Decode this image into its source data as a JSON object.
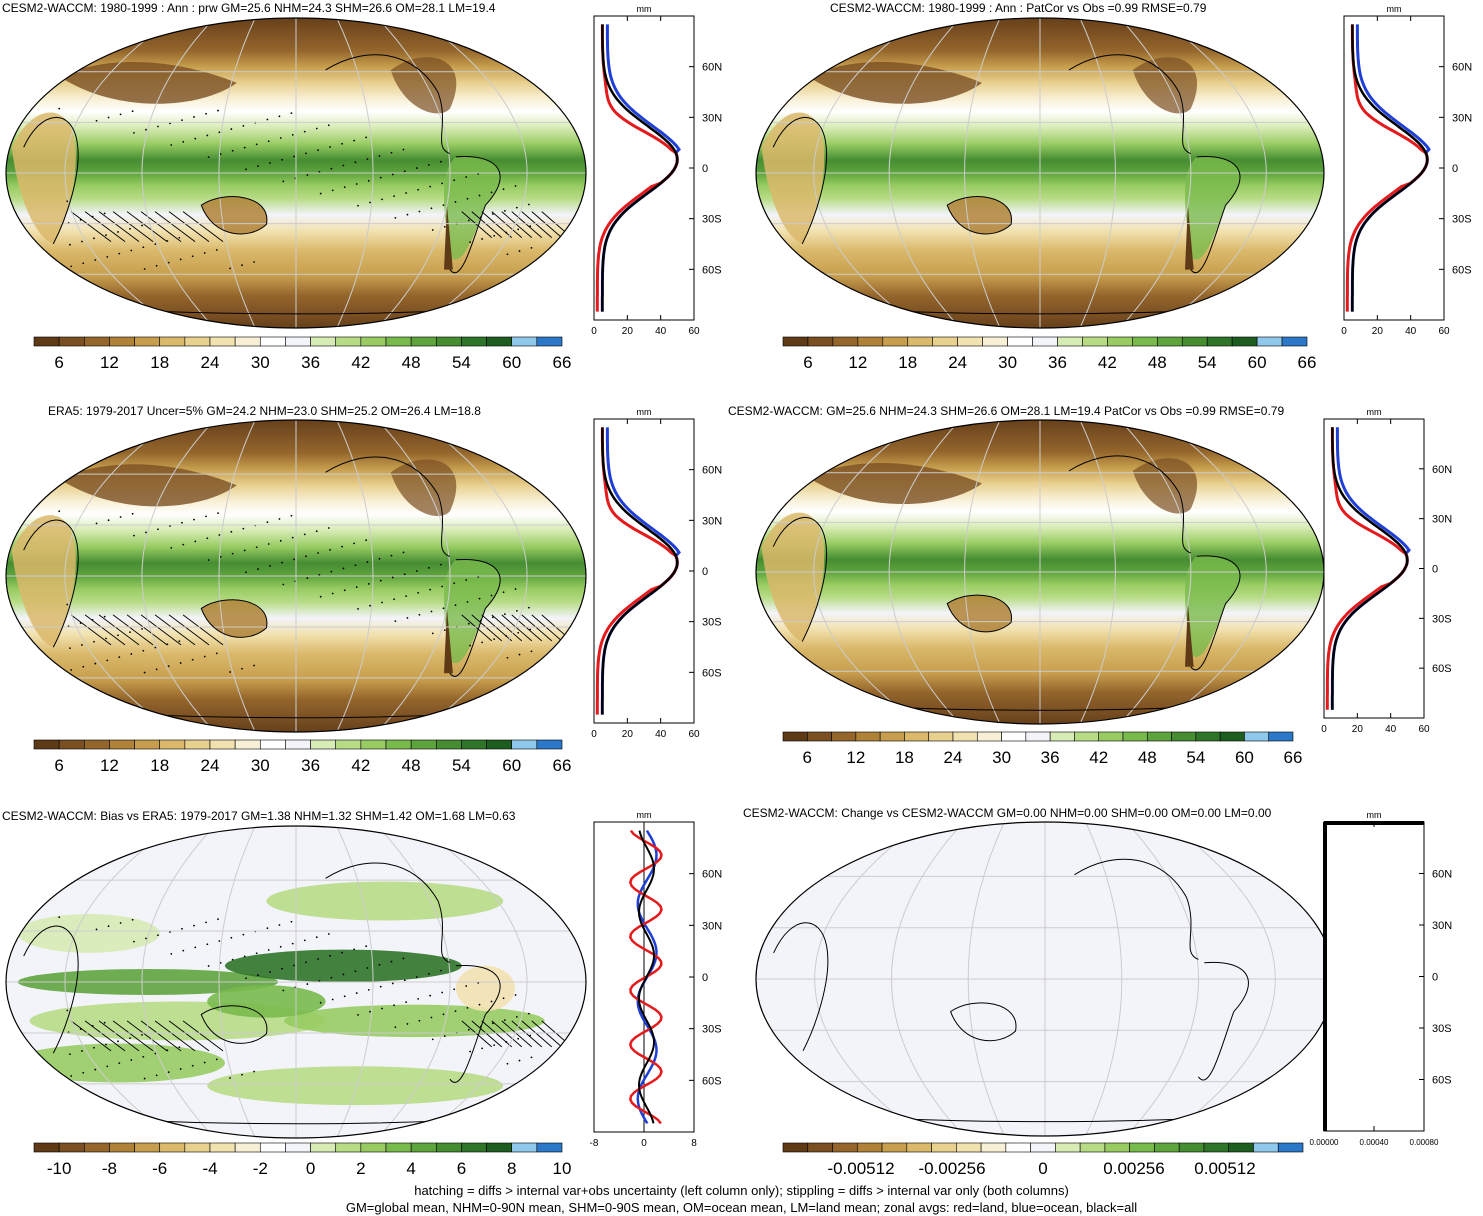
{
  "panels": [
    {
      "id": "p1",
      "title": "CESM2-WACCM: 1980-1999 : Ann : prw GM=25.6 NHM=24.3 SHM=26.6 OM=28.1 LM=19.4",
      "colorbar_labels": [
        "6",
        "12",
        "18",
        "24",
        "30",
        "36",
        "42",
        "48",
        "54",
        "60",
        "66"
      ],
      "profile_unit": "mm",
      "profile_xticks": [
        "0",
        "20",
        "40",
        "60"
      ],
      "profile_yticks": [
        "60N",
        "30N",
        "0",
        "30S",
        "60S"
      ]
    },
    {
      "id": "p2",
      "title": "CESM2-WACCM: 1980-1999 : Ann : PatCor vs Obs =0.99 RMSE=0.79",
      "colorbar_labels": [
        "6",
        "12",
        "18",
        "24",
        "30",
        "36",
        "42",
        "48",
        "54",
        "60",
        "66"
      ],
      "profile_unit": "mm",
      "profile_xticks": [
        "0",
        "20",
        "40",
        "60"
      ],
      "profile_yticks": [
        "60N",
        "30N",
        "0",
        "30S",
        "60S"
      ]
    },
    {
      "id": "p3",
      "title": "ERA5: 1979-2017 Uncer=5% GM=24.2 NHM=23.0 SHM=25.2 OM=26.4 LM=18.8",
      "colorbar_labels": [
        "6",
        "12",
        "18",
        "24",
        "30",
        "36",
        "42",
        "48",
        "54",
        "60",
        "66"
      ],
      "profile_unit": "mm",
      "profile_xticks": [
        "0",
        "20",
        "40",
        "60"
      ],
      "profile_yticks": [
        "60N",
        "30N",
        "0",
        "30S",
        "60S"
      ]
    },
    {
      "id": "p4",
      "title": "CESM2-WACCM: GM=25.6 NHM=24.3 SHM=26.6 OM=28.1 LM=19.4 PatCor vs Obs =0.99 RMSE=0.79",
      "colorbar_labels": [
        "6",
        "12",
        "18",
        "24",
        "30",
        "36",
        "42",
        "48",
        "54",
        "60",
        "66"
      ],
      "profile_unit": "mm",
      "profile_xticks": [
        "0",
        "20",
        "40",
        "60"
      ],
      "profile_yticks": [
        "60N",
        "30N",
        "0",
        "30S",
        "60S"
      ]
    },
    {
      "id": "p5",
      "title": "CESM2-WACCM: Bias vs ERA5: 1979-2017 GM=1.38 NHM=1.32 SHM=1.42 OM=1.68 LM=0.63",
      "colorbar_labels": [
        "-10",
        "-8",
        "-6",
        "-4",
        "-2",
        "0",
        "2",
        "4",
        "6",
        "8",
        "10"
      ],
      "profile_unit": "mm",
      "profile_xticks": [
        "-8",
        "0",
        "8"
      ],
      "profile_yticks": [
        "60N",
        "30N",
        "0",
        "30S",
        "60S"
      ]
    },
    {
      "id": "p6",
      "title": "CESM2-WACCM: Change vs CESM2-WACCM GM=0.00 NHM=0.00 SHM=0.00 OM=0.00 LM=0.00",
      "colorbar_labels": [
        "-0.00512",
        "-0.00256",
        "0",
        "0.00256",
        "0.00512"
      ],
      "profile_unit": "mm",
      "profile_xticks": [
        "0.00000",
        "0.00040",
        "0.00080"
      ],
      "profile_yticks": [
        "60N",
        "30N",
        "0",
        "30S",
        "60S"
      ]
    }
  ],
  "footer": {
    "line1": "hatching = diffs > internal var+obs uncertainty (left column only); stippling = diffs > internal var only (both columns)",
    "line2": "GM=global mean, NHM=0-90N mean, SHM=0-90S mean, OM=ocean mean, LM=land mean; zonal avgs: red=land, blue=ocean, black=all"
  },
  "colors": {
    "line_land": "#e41a1c",
    "line_ocean": "#1f3fd6",
    "line_all": "#000000",
    "prw_scale": [
      "#5e3a17",
      "#7a4f22",
      "#94662c",
      "#b08238",
      "#c79e4d",
      "#dab96b",
      "#e8d08f",
      "#f2e2b0",
      "#f8f0d6",
      "#ffffff",
      "#f3f4fa",
      "#d7ebb4",
      "#b8dc86",
      "#98cc63",
      "#79ba4c",
      "#5ea43d",
      "#468d32",
      "#2f7529",
      "#1d5e20",
      "#8ec9ec",
      "#2b78c9"
    ],
    "bias_scale": [
      "#5e3a17",
      "#7a4f22",
      "#94662c",
      "#b08238",
      "#c79e4d",
      "#dab96b",
      "#e8d08f",
      "#f2e2b0",
      "#f8f0d6",
      "#ffffff",
      "#f3f4fa",
      "#d7ebb4",
      "#b8dc86",
      "#98cc63",
      "#79ba4c",
      "#5ea43d",
      "#468d32",
      "#2f7529",
      "#1d5e20",
      "#8ec9ec",
      "#2b78c9"
    ]
  }
}
